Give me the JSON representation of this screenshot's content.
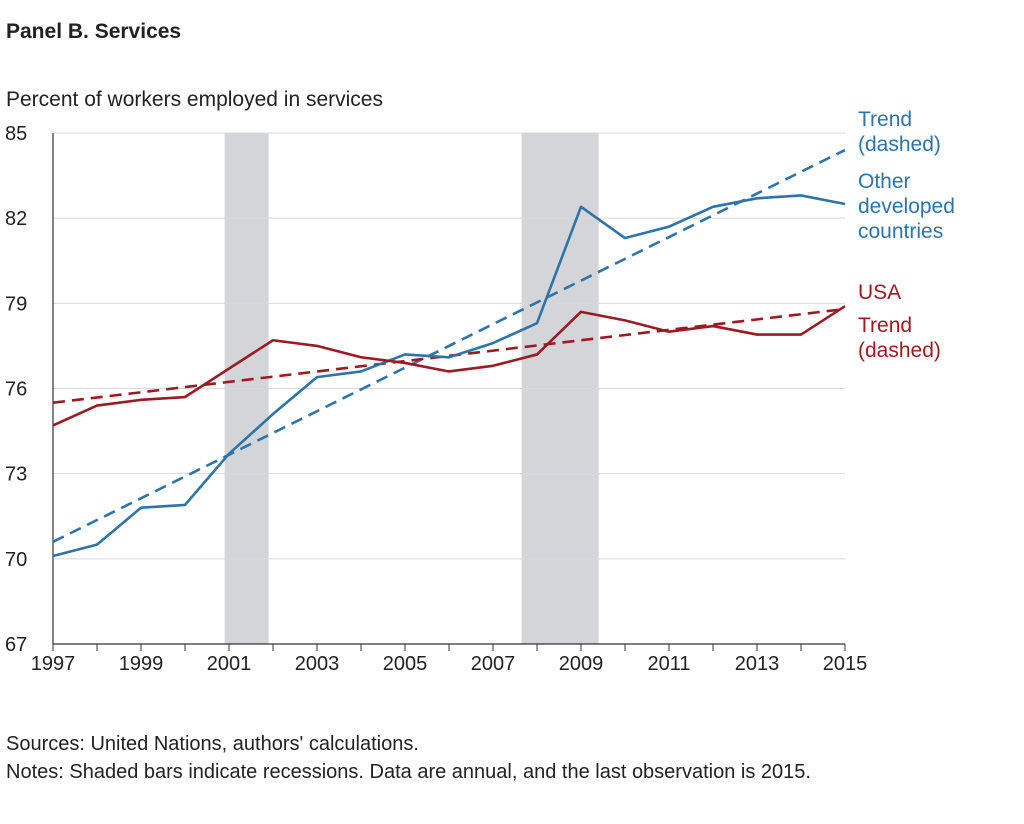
{
  "title": "Panel B. Services",
  "ylabel": "Percent of workers employed in services",
  "sources": "Sources: United Nations, authors' calculations.",
  "notes": "Notes: Shaded bars indicate recessions. Data are annual, and the last observation is 2015.",
  "colors": {
    "other": "#2e74a8",
    "usa": "#9b1b23",
    "recession": "#d4d5d8",
    "grid": "#d9d9d9"
  },
  "chart_data": {
    "type": "line",
    "xlim": [
      1997,
      2015
    ],
    "ylim": [
      67,
      85
    ],
    "yticks": [
      67,
      70,
      73,
      76,
      79,
      82,
      85
    ],
    "xticks": [
      1997,
      1999,
      2001,
      2003,
      2005,
      2007,
      2009,
      2011,
      2013,
      2015
    ],
    "grid": "horizontal",
    "recessions": [
      [
        2000.9,
        2001.9
      ],
      [
        2007.65,
        2009.4
      ]
    ],
    "x": [
      1997,
      1998,
      1999,
      2000,
      2001,
      2002,
      2003,
      2004,
      2005,
      2006,
      2007,
      2008,
      2009,
      2010,
      2011,
      2012,
      2013,
      2014,
      2015
    ],
    "series": [
      {
        "key": "other",
        "values": [
          70.1,
          70.5,
          71.8,
          71.9,
          73.7,
          75.1,
          76.4,
          76.6,
          77.2,
          77.1,
          77.6,
          78.3,
          82.4,
          81.3,
          81.7,
          82.4,
          82.7,
          82.8,
          82.5
        ]
      },
      {
        "key": "usa",
        "values": [
          74.7,
          75.4,
          75.6,
          75.7,
          76.7,
          77.7,
          77.5,
          77.1,
          76.9,
          76.6,
          76.8,
          77.2,
          78.7,
          78.4,
          78.0,
          78.2,
          77.9,
          77.9,
          78.9
        ]
      }
    ],
    "trends": [
      {
        "key": "other",
        "start": [
          1997,
          70.6
        ],
        "end": [
          2015,
          84.4
        ]
      },
      {
        "key": "usa",
        "start": [
          1997,
          75.5
        ],
        "end": [
          2015,
          78.8
        ]
      }
    ],
    "legend": {
      "other_trend": [
        "Trend",
        "(dashed)"
      ],
      "other_name": [
        "Other",
        "developed",
        "countries"
      ],
      "usa_name": [
        "USA"
      ],
      "usa_trend": [
        "Trend",
        "(dashed)"
      ]
    }
  }
}
